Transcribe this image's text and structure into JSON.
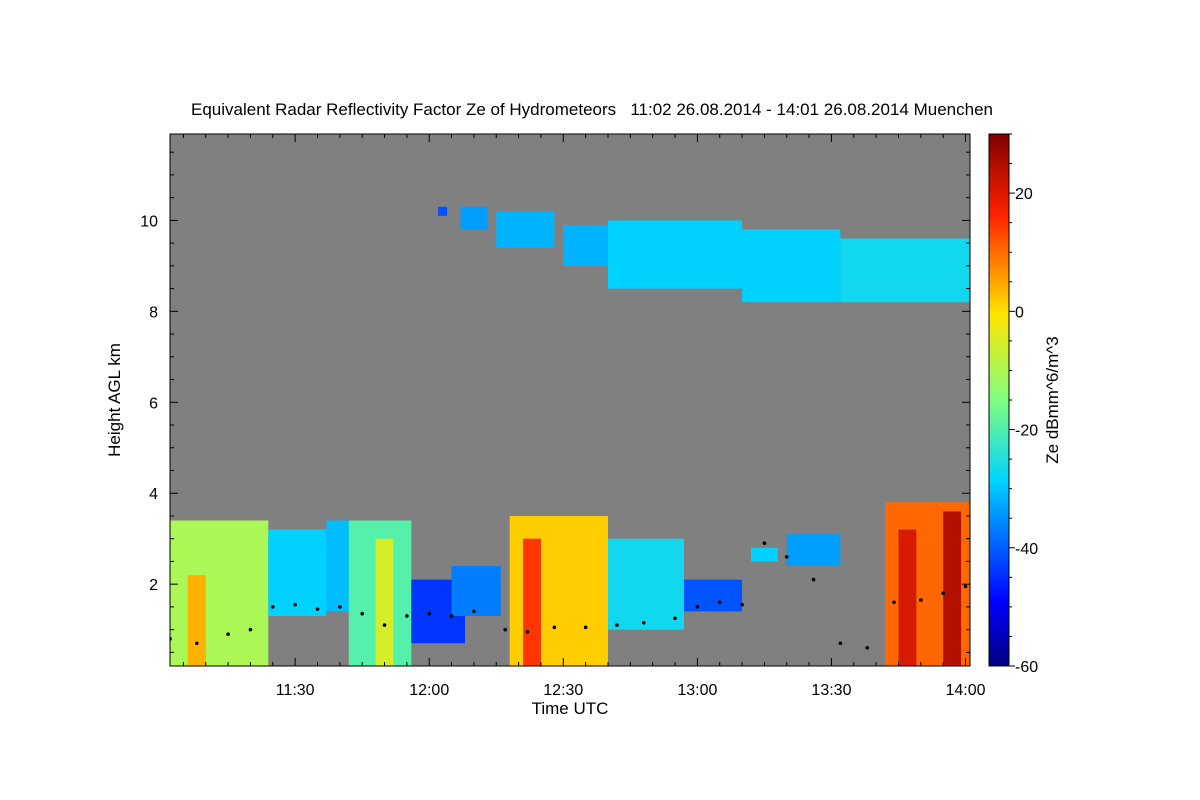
{
  "chart_data": {
    "type": "heatmap",
    "title": "Equivalent Radar Reflectivity Factor Ze of Hydrometeors   11:02 26.08.2014 - 14:01 26.08.2014 Muenchen",
    "xlabel": "Time UTC",
    "ylabel": "Height AGL km",
    "x_range_min": [
      662,
      841
    ],
    "y_range_km": [
      0.2,
      11.9
    ],
    "x_ticks": [
      {
        "label": "11:30",
        "min": 690
      },
      {
        "label": "12:00",
        "min": 720
      },
      {
        "label": "12:30",
        "min": 750
      },
      {
        "label": "13:00",
        "min": 780
      },
      {
        "label": "13:30",
        "min": 810
      },
      {
        "label": "14:00",
        "min": 840
      }
    ],
    "y_ticks": [
      {
        "label": "2",
        "km": 2
      },
      {
        "label": "4",
        "km": 4
      },
      {
        "label": "6",
        "km": 6
      },
      {
        "label": "8",
        "km": 8
      },
      {
        "label": "10",
        "km": 10
      }
    ],
    "background_color": "#808080",
    "colorbar": {
      "label": "Ze dBmm^6/m^3",
      "range": [
        -60,
        30
      ],
      "ticks": [
        {
          "label": "20",
          "v": 20
        },
        {
          "label": "0",
          "v": 0
        },
        {
          "label": "-20",
          "v": -20
        },
        {
          "label": "-40",
          "v": -40
        },
        {
          "label": "-60",
          "v": -60
        }
      ]
    },
    "echo_regions": [
      {
        "t0": 662,
        "t1": 684,
        "base": 0.2,
        "top": 3.4,
        "ze": -10
      },
      {
        "t0": 666,
        "t1": 670,
        "base": 0.2,
        "top": 2.2,
        "ze": 4
      },
      {
        "t0": 684,
        "t1": 697,
        "base": 1.3,
        "top": 3.2,
        "ze": -30
      },
      {
        "t0": 697,
        "t1": 706,
        "base": 1.4,
        "top": 3.4,
        "ze": -32
      },
      {
        "t0": 702,
        "t1": 716,
        "base": 0.2,
        "top": 3.4,
        "ze": -20
      },
      {
        "t0": 708,
        "t1": 712,
        "base": 0.2,
        "top": 3.0,
        "ze": -5
      },
      {
        "t0": 716,
        "t1": 728,
        "base": 0.7,
        "top": 2.1,
        "ze": -45
      },
      {
        "t0": 725,
        "t1": 736,
        "base": 1.3,
        "top": 2.4,
        "ze": -38
      },
      {
        "t0": 738,
        "t1": 760,
        "base": 0.2,
        "top": 3.5,
        "ze": 2
      },
      {
        "t0": 741,
        "t1": 745,
        "base": 0.2,
        "top": 3.0,
        "ze": 14
      },
      {
        "t0": 760,
        "t1": 777,
        "base": 1.0,
        "top": 3.0,
        "ze": -28
      },
      {
        "t0": 777,
        "t1": 790,
        "base": 1.4,
        "top": 2.1,
        "ze": -42
      },
      {
        "t0": 792,
        "t1": 798,
        "base": 2.5,
        "top": 2.8,
        "ze": -30
      },
      {
        "t0": 800,
        "t1": 812,
        "base": 2.4,
        "top": 3.1,
        "ze": -35
      },
      {
        "t0": 822,
        "t1": 841,
        "base": 0.2,
        "top": 3.8,
        "ze": 10
      },
      {
        "t0": 825,
        "t1": 829,
        "base": 0.2,
        "top": 3.2,
        "ze": 20
      },
      {
        "t0": 835,
        "t1": 839,
        "base": 0.2,
        "top": 3.6,
        "ze": 24
      },
      {
        "t0": 722,
        "t1": 724,
        "base": 10.1,
        "top": 10.3,
        "ze": -42
      },
      {
        "t0": 727,
        "t1": 733,
        "base": 9.8,
        "top": 10.3,
        "ze": -35
      },
      {
        "t0": 735,
        "t1": 748,
        "base": 9.4,
        "top": 10.2,
        "ze": -33
      },
      {
        "t0": 750,
        "t1": 760,
        "base": 9.0,
        "top": 9.9,
        "ze": -33
      },
      {
        "t0": 760,
        "t1": 790,
        "base": 8.5,
        "top": 10.0,
        "ze": -30
      },
      {
        "t0": 790,
        "t1": 812,
        "base": 8.2,
        "top": 9.8,
        "ze": -30
      },
      {
        "t0": 812,
        "t1": 841,
        "base": 8.2,
        "top": 9.6,
        "ze": -28
      }
    ],
    "cloud_base_points": [
      {
        "t": 662,
        "km": 0.8
      },
      {
        "t": 668,
        "km": 0.7
      },
      {
        "t": 675,
        "km": 0.9
      },
      {
        "t": 680,
        "km": 1.0
      },
      {
        "t": 685,
        "km": 1.5
      },
      {
        "t": 690,
        "km": 1.55
      },
      {
        "t": 695,
        "km": 1.45
      },
      {
        "t": 700,
        "km": 1.5
      },
      {
        "t": 705,
        "km": 1.35
      },
      {
        "t": 710,
        "km": 1.1
      },
      {
        "t": 715,
        "km": 1.3
      },
      {
        "t": 720,
        "km": 1.35
      },
      {
        "t": 725,
        "km": 1.3
      },
      {
        "t": 730,
        "km": 1.4
      },
      {
        "t": 737,
        "km": 1.0
      },
      {
        "t": 742,
        "km": 0.95
      },
      {
        "t": 748,
        "km": 1.05
      },
      {
        "t": 755,
        "km": 1.05
      },
      {
        "t": 762,
        "km": 1.1
      },
      {
        "t": 768,
        "km": 1.15
      },
      {
        "t": 775,
        "km": 1.25
      },
      {
        "t": 780,
        "km": 1.5
      },
      {
        "t": 785,
        "km": 1.6
      },
      {
        "t": 790,
        "km": 1.55
      },
      {
        "t": 795,
        "km": 2.9
      },
      {
        "t": 800,
        "km": 2.6
      },
      {
        "t": 806,
        "km": 2.1
      },
      {
        "t": 812,
        "km": 0.7
      },
      {
        "t": 818,
        "km": 0.6
      },
      {
        "t": 824,
        "km": 1.6
      },
      {
        "t": 830,
        "km": 1.65
      },
      {
        "t": 835,
        "km": 1.8
      },
      {
        "t": 840,
        "km": 1.95
      }
    ]
  }
}
